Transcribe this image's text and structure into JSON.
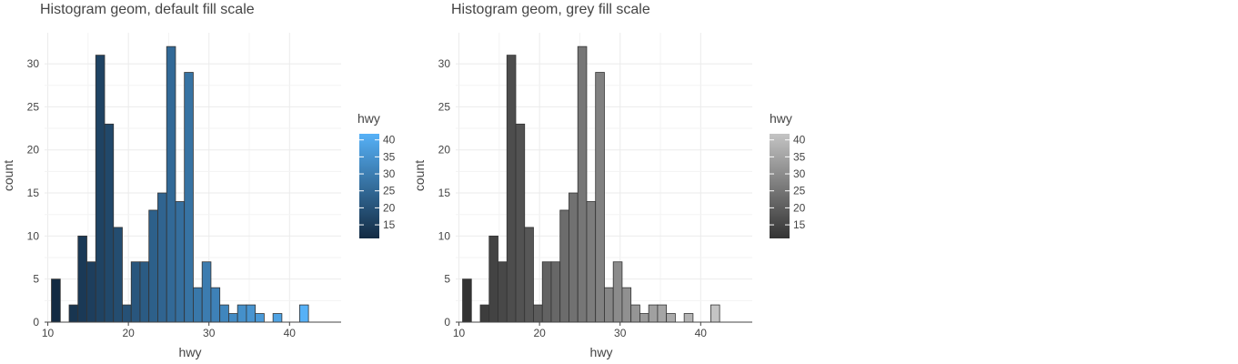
{
  "chart_data": [
    {
      "type": "bar",
      "title": "Histogram geom, default fill scale",
      "xlabel": "hwy",
      "ylabel": "count",
      "xlim": [
        9.6,
        46.4
      ],
      "ylim": [
        0,
        33.6
      ],
      "xticks": [
        "10",
        "20",
        "30",
        "40"
      ],
      "yticks": [
        "0",
        "5",
        "10",
        "15",
        "20",
        "25",
        "30"
      ],
      "bin_width": 1.1,
      "bin_start": 11.0,
      "values": [
        5,
        0,
        2,
        10,
        7,
        31,
        23,
        11,
        2,
        7,
        7,
        13,
        15,
        32,
        14,
        29,
        4,
        7,
        4,
        2,
        1,
        2,
        2,
        1,
        0,
        1,
        0,
        0,
        2
      ],
      "grid": true,
      "legend": {
        "title": "hwy",
        "ticks": [
          "15",
          "20",
          "25",
          "30",
          "35",
          "40"
        ],
        "position": "right"
      },
      "colors": {
        "low": "#132B43",
        "high": "#56B1F7",
        "bar_outline": "#333333",
        "grid": "#ebebeb",
        "axis": "#444444"
      }
    },
    {
      "type": "bar",
      "title": "Histogram geom, grey fill scale",
      "xlabel": "hwy",
      "ylabel": "count",
      "xlim": [
        9.6,
        46.4
      ],
      "ylim": [
        0,
        33.6
      ],
      "xticks": [
        "10",
        "20",
        "30",
        "40"
      ],
      "yticks": [
        "0",
        "5",
        "10",
        "15",
        "20",
        "25",
        "30"
      ],
      "bin_width": 1.1,
      "bin_start": 11.0,
      "values": [
        5,
        0,
        2,
        10,
        7,
        31,
        23,
        11,
        2,
        7,
        7,
        13,
        15,
        32,
        14,
        29,
        4,
        7,
        4,
        2,
        1,
        2,
        2,
        1,
        0,
        1,
        0,
        0,
        2
      ],
      "grid": true,
      "legend": {
        "title": "hwy",
        "ticks": [
          "15",
          "20",
          "25",
          "30",
          "35",
          "40"
        ],
        "position": "right"
      },
      "colors": {
        "low": "#333333",
        "high": "#c4c4c4",
        "bar_outline": "#333333",
        "grid": "#ebebeb",
        "axis": "#444444"
      }
    }
  ]
}
